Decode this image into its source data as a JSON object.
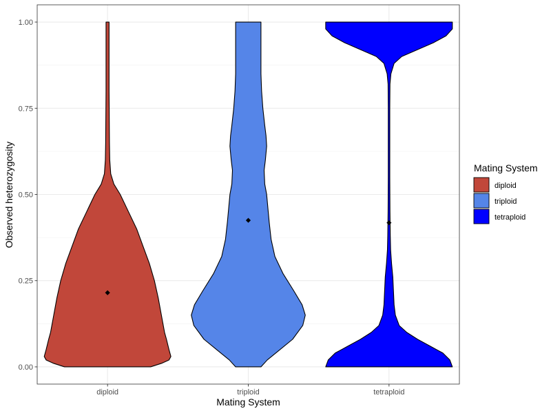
{
  "chart_data": {
    "type": "violin",
    "xlabel": "Mating System",
    "ylabel": "Observed heterozygosity",
    "ylim": [
      -0.05,
      1.05
    ],
    "yticks": [
      0.0,
      0.25,
      0.5,
      0.75,
      1.0
    ],
    "ytick_labels": [
      "0.00",
      "0.25",
      "0.50",
      "0.75",
      "1.00"
    ],
    "categories": [
      "diploid",
      "triploid",
      "tetraploid"
    ],
    "grid": true,
    "legend": {
      "title": "Mating System",
      "position": "right",
      "entries": [
        "diploid",
        "triploid",
        "tetraploid"
      ]
    },
    "series": [
      {
        "name": "diploid",
        "color": "#c1473a",
        "mean": 0.215,
        "ymin": 0.0,
        "ymax": 1.0,
        "density": [
          [
            0.0,
            0.68
          ],
          [
            0.01,
            0.85
          ],
          [
            0.02,
            0.97
          ],
          [
            0.03,
            1.0
          ],
          [
            0.05,
            0.97
          ],
          [
            0.08,
            0.93
          ],
          [
            0.1,
            0.9
          ],
          [
            0.14,
            0.86
          ],
          [
            0.2,
            0.8
          ],
          [
            0.25,
            0.74
          ],
          [
            0.3,
            0.66
          ],
          [
            0.35,
            0.56
          ],
          [
            0.4,
            0.46
          ],
          [
            0.45,
            0.33
          ],
          [
            0.5,
            0.2
          ],
          [
            0.53,
            0.1
          ],
          [
            0.56,
            0.05
          ],
          [
            0.6,
            0.035
          ],
          [
            0.65,
            0.03
          ],
          [
            0.7,
            0.028
          ],
          [
            0.75,
            0.026
          ],
          [
            0.8,
            0.024
          ],
          [
            0.85,
            0.024
          ],
          [
            0.9,
            0.024
          ],
          [
            0.95,
            0.024
          ],
          [
            1.0,
            0.024
          ]
        ]
      },
      {
        "name": "triploid",
        "color": "#5585e8",
        "mean": 0.425,
        "ymin": 0.0,
        "ymax": 1.0,
        "density": [
          [
            0.0,
            0.2
          ],
          [
            0.02,
            0.3
          ],
          [
            0.05,
            0.5
          ],
          [
            0.08,
            0.7
          ],
          [
            0.12,
            0.86
          ],
          [
            0.15,
            0.9
          ],
          [
            0.18,
            0.85
          ],
          [
            0.22,
            0.72
          ],
          [
            0.27,
            0.55
          ],
          [
            0.32,
            0.42
          ],
          [
            0.37,
            0.36
          ],
          [
            0.42,
            0.33
          ],
          [
            0.46,
            0.31
          ],
          [
            0.5,
            0.29
          ],
          [
            0.53,
            0.26
          ],
          [
            0.57,
            0.25
          ],
          [
            0.6,
            0.27
          ],
          [
            0.64,
            0.29
          ],
          [
            0.67,
            0.28
          ],
          [
            0.7,
            0.26
          ],
          [
            0.75,
            0.23
          ],
          [
            0.8,
            0.21
          ],
          [
            0.85,
            0.2
          ],
          [
            0.9,
            0.2
          ],
          [
            0.95,
            0.2
          ],
          [
            1.0,
            0.2
          ]
        ]
      },
      {
        "name": "tetraploid",
        "color": "#0000ff",
        "mean": 0.418,
        "ymin": 0.0,
        "ymax": 1.0,
        "density": [
          [
            0.0,
            1.0
          ],
          [
            0.02,
            0.96
          ],
          [
            0.04,
            0.85
          ],
          [
            0.06,
            0.65
          ],
          [
            0.08,
            0.45
          ],
          [
            0.1,
            0.28
          ],
          [
            0.12,
            0.16
          ],
          [
            0.15,
            0.1
          ],
          [
            0.18,
            0.08
          ],
          [
            0.22,
            0.07
          ],
          [
            0.26,
            0.06
          ],
          [
            0.3,
            0.04
          ],
          [
            0.34,
            0.025
          ],
          [
            0.38,
            0.02
          ],
          [
            0.45,
            0.015
          ],
          [
            0.55,
            0.012
          ],
          [
            0.65,
            0.012
          ],
          [
            0.75,
            0.012
          ],
          [
            0.82,
            0.015
          ],
          [
            0.85,
            0.03
          ],
          [
            0.88,
            0.08
          ],
          [
            0.9,
            0.2
          ],
          [
            0.92,
            0.45
          ],
          [
            0.94,
            0.7
          ],
          [
            0.96,
            0.9
          ],
          [
            0.98,
            1.0
          ],
          [
            1.0,
            1.0
          ]
        ]
      }
    ]
  }
}
